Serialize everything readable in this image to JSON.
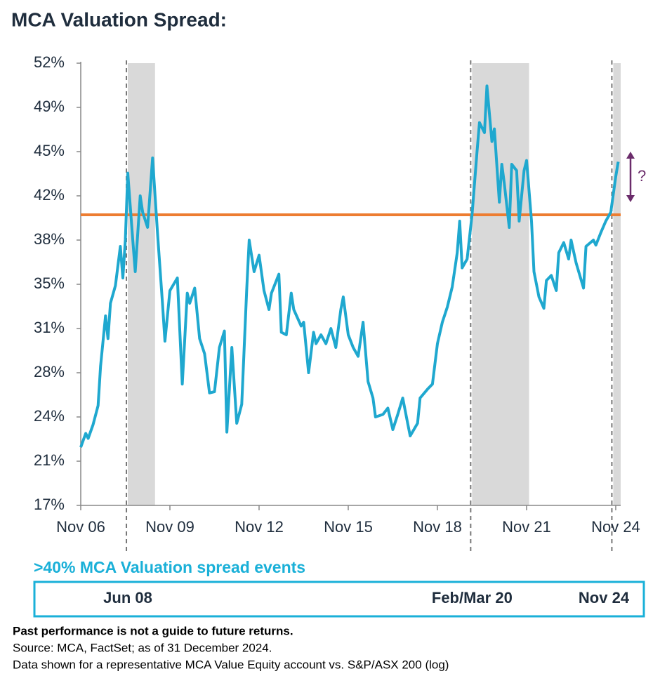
{
  "chart_data": {
    "type": "line",
    "title": "MCA Valuation Spread:",
    "color": "#1fa8cf",
    "x": [
      "2006-11",
      "2007-01",
      "2007-02",
      "2007-04",
      "2007-06",
      "2007-07",
      "2007-09",
      "2007-10",
      "2007-11",
      "2008-01",
      "2008-03",
      "2008-04",
      "2008-05",
      "2008-06",
      "2008-08",
      "2008-09",
      "2008-11",
      "2008-12",
      "2009-02",
      "2009-04",
      "2009-06",
      "2009-08",
      "2009-09",
      "2009-11",
      "2010-02",
      "2010-04",
      "2010-06",
      "2010-07",
      "2010-09",
      "2010-11",
      "2011-01",
      "2011-03",
      "2011-05",
      "2011-07",
      "2011-09",
      "2011-10",
      "2011-12",
      "2012-02",
      "2012-04",
      "2012-06",
      "2012-07",
      "2012-09",
      "2012-11",
      "2013-01",
      "2013-03",
      "2013-04",
      "2013-07",
      "2013-08",
      "2013-10",
      "2013-12",
      "2014-01",
      "2014-04",
      "2014-05",
      "2014-07",
      "2014-09",
      "2014-10",
      "2014-12",
      "2015-02",
      "2015-04",
      "2015-06",
      "2015-08",
      "2015-09",
      "2015-11",
      "2016-01",
      "2016-03",
      "2016-05",
      "2016-07",
      "2016-09",
      "2016-10",
      "2017-01",
      "2017-03",
      "2017-05",
      "2017-07",
      "2017-09",
      "2017-11",
      "2017-12",
      "2018-03",
      "2018-04",
      "2018-07",
      "2018-09",
      "2018-11",
      "2019-01",
      "2019-03",
      "2019-05",
      "2019-07",
      "2019-08",
      "2019-09",
      "2019-11",
      "2020-01",
      "2020-03",
      "2020-04",
      "2020-06",
      "2020-07",
      "2020-09",
      "2020-10",
      "2020-12",
      "2021-01",
      "2021-02",
      "2021-04",
      "2021-05",
      "2021-07",
      "2021-08",
      "2021-10",
      "2021-11",
      "2022-01",
      "2022-02",
      "2022-04",
      "2022-06",
      "2022-07",
      "2022-09",
      "2022-11",
      "2022-12",
      "2023-02",
      "2023-04",
      "2023-05",
      "2023-07",
      "2023-10",
      "2023-11",
      "2024-02",
      "2024-03",
      "2024-05",
      "2024-07",
      "2024-09",
      "2024-11",
      "2024-12"
    ],
    "values": [
      21.6,
      22.7,
      22.3,
      23.4,
      24.9,
      28,
      32,
      30.2,
      33,
      34.4,
      37.5,
      35,
      38,
      43.3,
      38,
      35.5,
      41.5,
      40.2,
      39,
      44.5,
      38.5,
      33,
      30,
      34,
      35,
      26.6,
      33.8,
      33,
      34.2,
      30.2,
      29,
      25.9,
      26,
      29.5,
      30.8,
      22.8,
      29.5,
      23.5,
      25,
      34,
      38,
      35.5,
      36.8,
      34,
      32.5,
      33.8,
      35.3,
      30.7,
      30.5,
      33.8,
      32.5,
      31.2,
      31.5,
      27.5,
      30.7,
      29.8,
      30.5,
      29.8,
      31,
      29.5,
      32.5,
      33.5,
      30.5,
      29.5,
      28.8,
      31.5,
      26.8,
      25.5,
      24,
      24.2,
      24.7,
      23,
      24.2,
      25.5,
      23.5,
      22.5,
      23.5,
      25.5,
      26.2,
      26.6,
      29.8,
      31.5,
      32.7,
      34.3,
      37,
      39.5,
      35.8,
      36.5,
      40,
      45,
      47.3,
      46.5,
      50.2,
      45.8,
      46.8,
      41,
      44,
      42.5,
      39,
      44,
      43.5,
      39.5,
      43.5,
      44.3,
      39.5,
      35.5,
      33.5,
      32.6,
      34.8,
      35.2,
      34,
      37,
      37.8,
      36.5,
      38,
      36.2,
      34.2,
      37.5,
      38,
      37.6,
      38.6,
      39.5,
      40.2,
      43,
      44.2
    ],
    "xlim": [
      "2006-11",
      "2025-01"
    ],
    "xticks": [
      {
        "value": "2006-11",
        "label": "Nov 06"
      },
      {
        "value": "2009-11",
        "label": "Nov 09"
      },
      {
        "value": "2012-11",
        "label": "Nov 12"
      },
      {
        "value": "2015-11",
        "label": "Nov 15"
      },
      {
        "value": "2018-11",
        "label": "Nov 18"
      },
      {
        "value": "2021-11",
        "label": "Nov 21"
      },
      {
        "value": "2024-11",
        "label": "Nov 24"
      }
    ],
    "ylim": [
      17,
      52
    ],
    "yticks": [
      {
        "value": 17,
        "label": "17%"
      },
      {
        "value": 20.5,
        "label": "21%"
      },
      {
        "value": 24,
        "label": "24%"
      },
      {
        "value": 27.5,
        "label": "28%"
      },
      {
        "value": 31,
        "label": "31%"
      },
      {
        "value": 34.5,
        "label": "35%"
      },
      {
        "value": 38,
        "label": "38%"
      },
      {
        "value": 41.5,
        "label": "42%"
      },
      {
        "value": 45,
        "label": "45%"
      },
      {
        "value": 48.5,
        "label": "49%"
      },
      {
        "value": 52,
        "label": "52%"
      }
    ],
    "threshold": {
      "value": 40,
      "color": "#ed7d31"
    },
    "annotation": {
      "text": "?",
      "top": 45,
      "bottom": 41,
      "color": "#6b2c6b"
    },
    "events_title": ">40% MCA Valuation spread events",
    "events": [
      {
        "label": "Jun 08",
        "start": "2008-06",
        "end": "2009-05"
      },
      {
        "label": "Feb/Mar 20",
        "start": "2020-01",
        "end": "2021-12"
      },
      {
        "label": "Nov 24",
        "start": "2024-10",
        "end": "2025-01"
      }
    ],
    "footnotes": [
      "Past performance is not a guide to future returns.",
      "Source: MCA, FactSet; as of 31 December 2024.",
      "Data shown for a representative MCA Value Equity account vs. S&P/ASX 200 (log)"
    ]
  }
}
